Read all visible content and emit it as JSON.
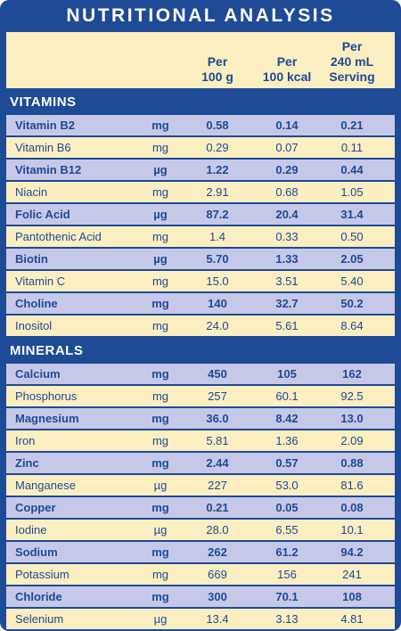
{
  "title": "NUTRITIONAL ANALYSIS",
  "columns": {
    "per_100g": [
      "Per",
      "100 g"
    ],
    "per_100kcal": [
      "Per",
      "100 kcal"
    ],
    "per_240ml": [
      "Per",
      "240 mL",
      "Serving"
    ]
  },
  "colors": {
    "frame": "#1e4a96",
    "row_blue": "#c6c8e8",
    "row_yellow": "#fbeec0",
    "text": "#1e4a96"
  },
  "vitamins": {
    "heading": "VITAMINS",
    "rows": [
      {
        "name": "Vitamin B2",
        "unit": "mg",
        "per_100g": "0.58",
        "per_100kcal": "0.14",
        "per_serving": "0.21"
      },
      {
        "name": "Vitamin B6",
        "unit": "mg",
        "per_100g": "0.29",
        "per_100kcal": "0.07",
        "per_serving": "0.11"
      },
      {
        "name": "Vitamin B12",
        "unit": "µg",
        "per_100g": "1.22",
        "per_100kcal": "0.29",
        "per_serving": "0.44"
      },
      {
        "name": "Niacin",
        "unit": "mg",
        "per_100g": "2.91",
        "per_100kcal": "0.68",
        "per_serving": "1.05"
      },
      {
        "name": "Folic Acid",
        "unit": "µg",
        "per_100g": "87.2",
        "per_100kcal": "20.4",
        "per_serving": "31.4"
      },
      {
        "name": "Pantothenic Acid",
        "unit": "mg",
        "per_100g": "1.4",
        "per_100kcal": "0.33",
        "per_serving": "0.50"
      },
      {
        "name": "Biotin",
        "unit": "µg",
        "per_100g": "5.70",
        "per_100kcal": "1.33",
        "per_serving": "2.05"
      },
      {
        "name": "Vitamin C",
        "unit": "mg",
        "per_100g": "15.0",
        "per_100kcal": "3.51",
        "per_serving": "5.40"
      },
      {
        "name": "Choline",
        "unit": "mg",
        "per_100g": "140",
        "per_100kcal": "32.7",
        "per_serving": "50.2"
      },
      {
        "name": "Inositol",
        "unit": "mg",
        "per_100g": "24.0",
        "per_100kcal": "5.61",
        "per_serving": "8.64"
      }
    ]
  },
  "minerals": {
    "heading": "MINERALS",
    "rows": [
      {
        "name": "Calcium",
        "unit": "mg",
        "per_100g": "450",
        "per_100kcal": "105",
        "per_serving": "162"
      },
      {
        "name": "Phosphorus",
        "unit": "mg",
        "per_100g": "257",
        "per_100kcal": "60.1",
        "per_serving": "92.5"
      },
      {
        "name": "Magnesium",
        "unit": "mg",
        "per_100g": "36.0",
        "per_100kcal": "8.42",
        "per_serving": "13.0"
      },
      {
        "name": "Iron",
        "unit": "mg",
        "per_100g": "5.81",
        "per_100kcal": "1.36",
        "per_serving": "2.09"
      },
      {
        "name": "Zinc",
        "unit": "mg",
        "per_100g": "2.44",
        "per_100kcal": "0.57",
        "per_serving": "0.88"
      },
      {
        "name": "Manganese",
        "unit": "µg",
        "per_100g": "227",
        "per_100kcal": "53.0",
        "per_serving": "81.6"
      },
      {
        "name": "Copper",
        "unit": "mg",
        "per_100g": "0.21",
        "per_100kcal": "0.05",
        "per_serving": "0.08"
      },
      {
        "name": "Iodine",
        "unit": "µg",
        "per_100g": "28.0",
        "per_100kcal": "6.55",
        "per_serving": "10.1"
      },
      {
        "name": "Sodium",
        "unit": "mg",
        "per_100g": "262",
        "per_100kcal": "61.2",
        "per_serving": "94.2"
      },
      {
        "name": "Potassium",
        "unit": "mg",
        "per_100g": "669",
        "per_100kcal": "156",
        "per_serving": "241"
      },
      {
        "name": "Chloride",
        "unit": "mg",
        "per_100g": "300",
        "per_100kcal": "70.1",
        "per_serving": "108"
      },
      {
        "name": "Selenium",
        "unit": "µg",
        "per_100g": "13.4",
        "per_100kcal": "3.13",
        "per_serving": "4.81"
      }
    ]
  }
}
